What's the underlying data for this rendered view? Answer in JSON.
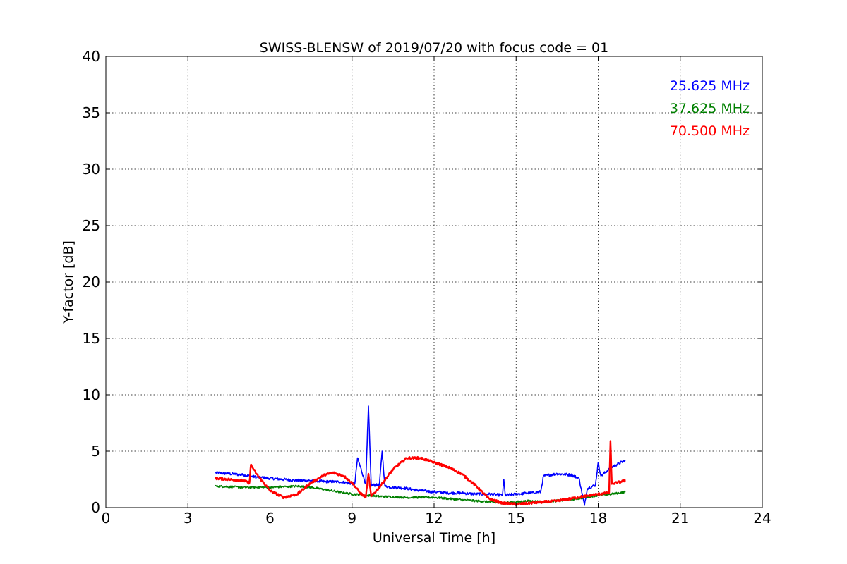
{
  "chart_data": {
    "type": "line",
    "title": "SWISS-BLENSW of 2019/07/20 with focus code = 01",
    "xlabel": "Universal Time [h]",
    "ylabel": "Y-factor [dB]",
    "xlim": [
      0,
      24
    ],
    "ylim": [
      0,
      40
    ],
    "xticks": [
      0,
      3,
      6,
      9,
      12,
      15,
      18,
      21,
      24
    ],
    "yticks": [
      0,
      5,
      10,
      15,
      20,
      25,
      30,
      35,
      40
    ],
    "grid": true,
    "legend_position": "top-right",
    "series": [
      {
        "name": "25.625 MHz",
        "color": "#0000ff",
        "x": [
          4.0,
          4.5,
          5.0,
          5.5,
          6.0,
          6.5,
          7.0,
          7.5,
          8.0,
          8.5,
          8.8,
          9.1,
          9.2,
          9.5,
          9.6,
          9.7,
          10.0,
          10.1,
          10.2,
          10.5,
          11.0,
          11.5,
          12.0,
          12.5,
          13.0,
          13.5,
          14.0,
          14.5,
          14.55,
          14.6,
          15.0,
          15.5,
          15.9,
          16.0,
          16.5,
          17.0,
          17.3,
          17.5,
          17.6,
          17.9,
          18.0,
          18.1,
          18.5,
          19.0
        ],
        "y": [
          3.1,
          3.0,
          2.9,
          2.7,
          2.6,
          2.5,
          2.4,
          2.4,
          2.3,
          2.3,
          2.2,
          2.1,
          4.4,
          2.1,
          9.0,
          2.0,
          2.0,
          5.0,
          1.9,
          1.8,
          1.7,
          1.5,
          1.4,
          1.3,
          1.3,
          1.2,
          1.2,
          1.1,
          2.5,
          1.1,
          1.2,
          1.3,
          1.4,
          2.8,
          3.0,
          2.9,
          2.6,
          0.2,
          1.7,
          2.0,
          4.0,
          2.8,
          3.6,
          4.2
        ]
      },
      {
        "name": "37.625 MHz",
        "color": "#008000",
        "x": [
          4.0,
          5.0,
          6.0,
          7.0,
          7.5,
          8.0,
          8.5,
          9.0,
          10.0,
          11.0,
          12.0,
          12.5,
          13.0,
          13.5,
          14.0,
          14.5,
          15.0,
          15.5,
          16.0,
          16.5,
          17.0,
          17.5,
          18.0,
          18.5,
          19.0
        ],
        "y": [
          1.9,
          1.8,
          1.8,
          1.9,
          1.8,
          1.6,
          1.4,
          1.2,
          1.0,
          0.9,
          0.9,
          0.8,
          0.7,
          0.6,
          0.5,
          0.4,
          0.5,
          0.6,
          0.5,
          0.6,
          0.7,
          0.9,
          1.1,
          1.2,
          1.4
        ]
      },
      {
        "name": "70.500 MHz",
        "color": "#ff0000",
        "x": [
          4.0,
          4.5,
          5.0,
          5.25,
          5.3,
          5.35,
          5.5,
          6.0,
          6.5,
          7.0,
          7.5,
          8.0,
          8.3,
          8.7,
          9.0,
          9.3,
          9.5,
          9.6,
          9.7,
          10.0,
          10.5,
          11.0,
          11.5,
          12.0,
          12.5,
          13.0,
          13.5,
          14.0,
          14.5,
          15.0,
          15.5,
          16.0,
          16.5,
          17.0,
          17.5,
          18.0,
          18.4,
          18.45,
          18.5,
          19.0
        ],
        "y": [
          2.6,
          2.5,
          2.4,
          2.2,
          3.8,
          3.6,
          3.0,
          1.5,
          0.9,
          1.2,
          2.2,
          2.9,
          3.1,
          2.8,
          2.2,
          1.3,
          0.9,
          3.0,
          1.0,
          1.8,
          3.4,
          4.4,
          4.4,
          4.0,
          3.6,
          3.0,
          2.0,
          0.8,
          0.4,
          0.3,
          0.4,
          0.5,
          0.6,
          0.8,
          1.0,
          1.2,
          1.3,
          5.9,
          2.1,
          2.4
        ]
      }
    ]
  }
}
